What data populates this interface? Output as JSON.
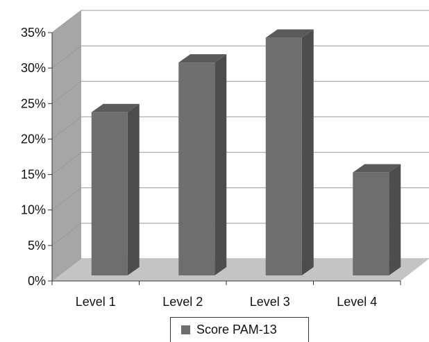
{
  "chart_data": {
    "type": "bar",
    "categories": [
      "Level 1",
      "Level 2",
      "Level 3",
      "Level 4"
    ],
    "series": [
      {
        "name": "Score PAM-13",
        "values": [
          23,
          30,
          33.5,
          14.5
        ]
      }
    ],
    "ylim": [
      0,
      35
    ],
    "yticks": [
      "0%",
      "5%",
      "10%",
      "15%",
      "20%",
      "25%",
      "30%",
      "35%"
    ],
    "grid": true,
    "legend": "bottom",
    "three_d": true,
    "colors": {
      "bar_front": "#6e6e6e",
      "bar_side": "#4d4d4d",
      "bar_top": "#5a5a5a",
      "floor": "#c4c4c4",
      "wall": "#a6a6a6",
      "grid": "#999999"
    }
  }
}
